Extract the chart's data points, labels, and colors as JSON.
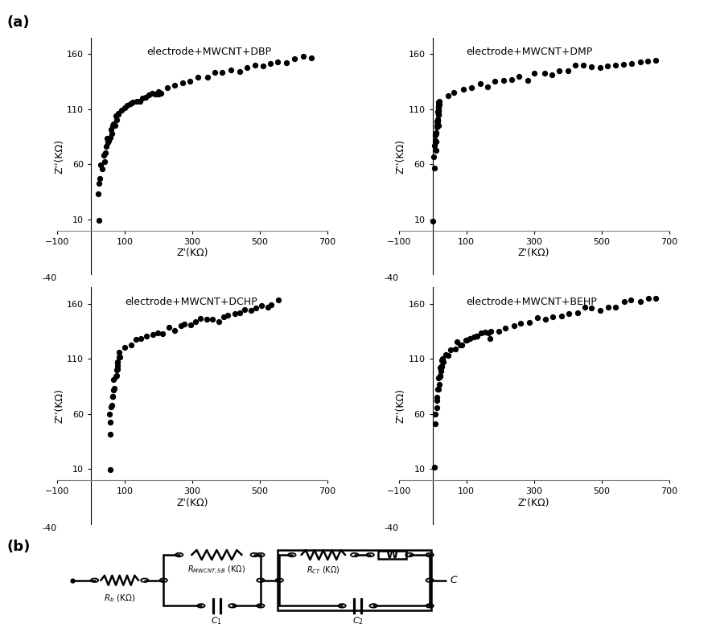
{
  "title_a": "(a)",
  "title_b": "(b)",
  "subplot_titles": [
    "electrode+MWCNT+DBP",
    "electrode+MWCNT+DMP",
    "electrode+MWCNT+DCHP",
    "electrode+MWCNT+BEHP"
  ],
  "xlabel": "Z'(KΩ)",
  "ylabel": "Z''(KΩ)",
  "xlim": [
    -100,
    700
  ],
  "ylim": [
    -40,
    175
  ],
  "xticks": [
    -100,
    100,
    300,
    500,
    700
  ],
  "yticks": [
    10,
    60,
    110,
    160
  ],
  "dot_color": "black",
  "dot_size": 18,
  "background": "white"
}
